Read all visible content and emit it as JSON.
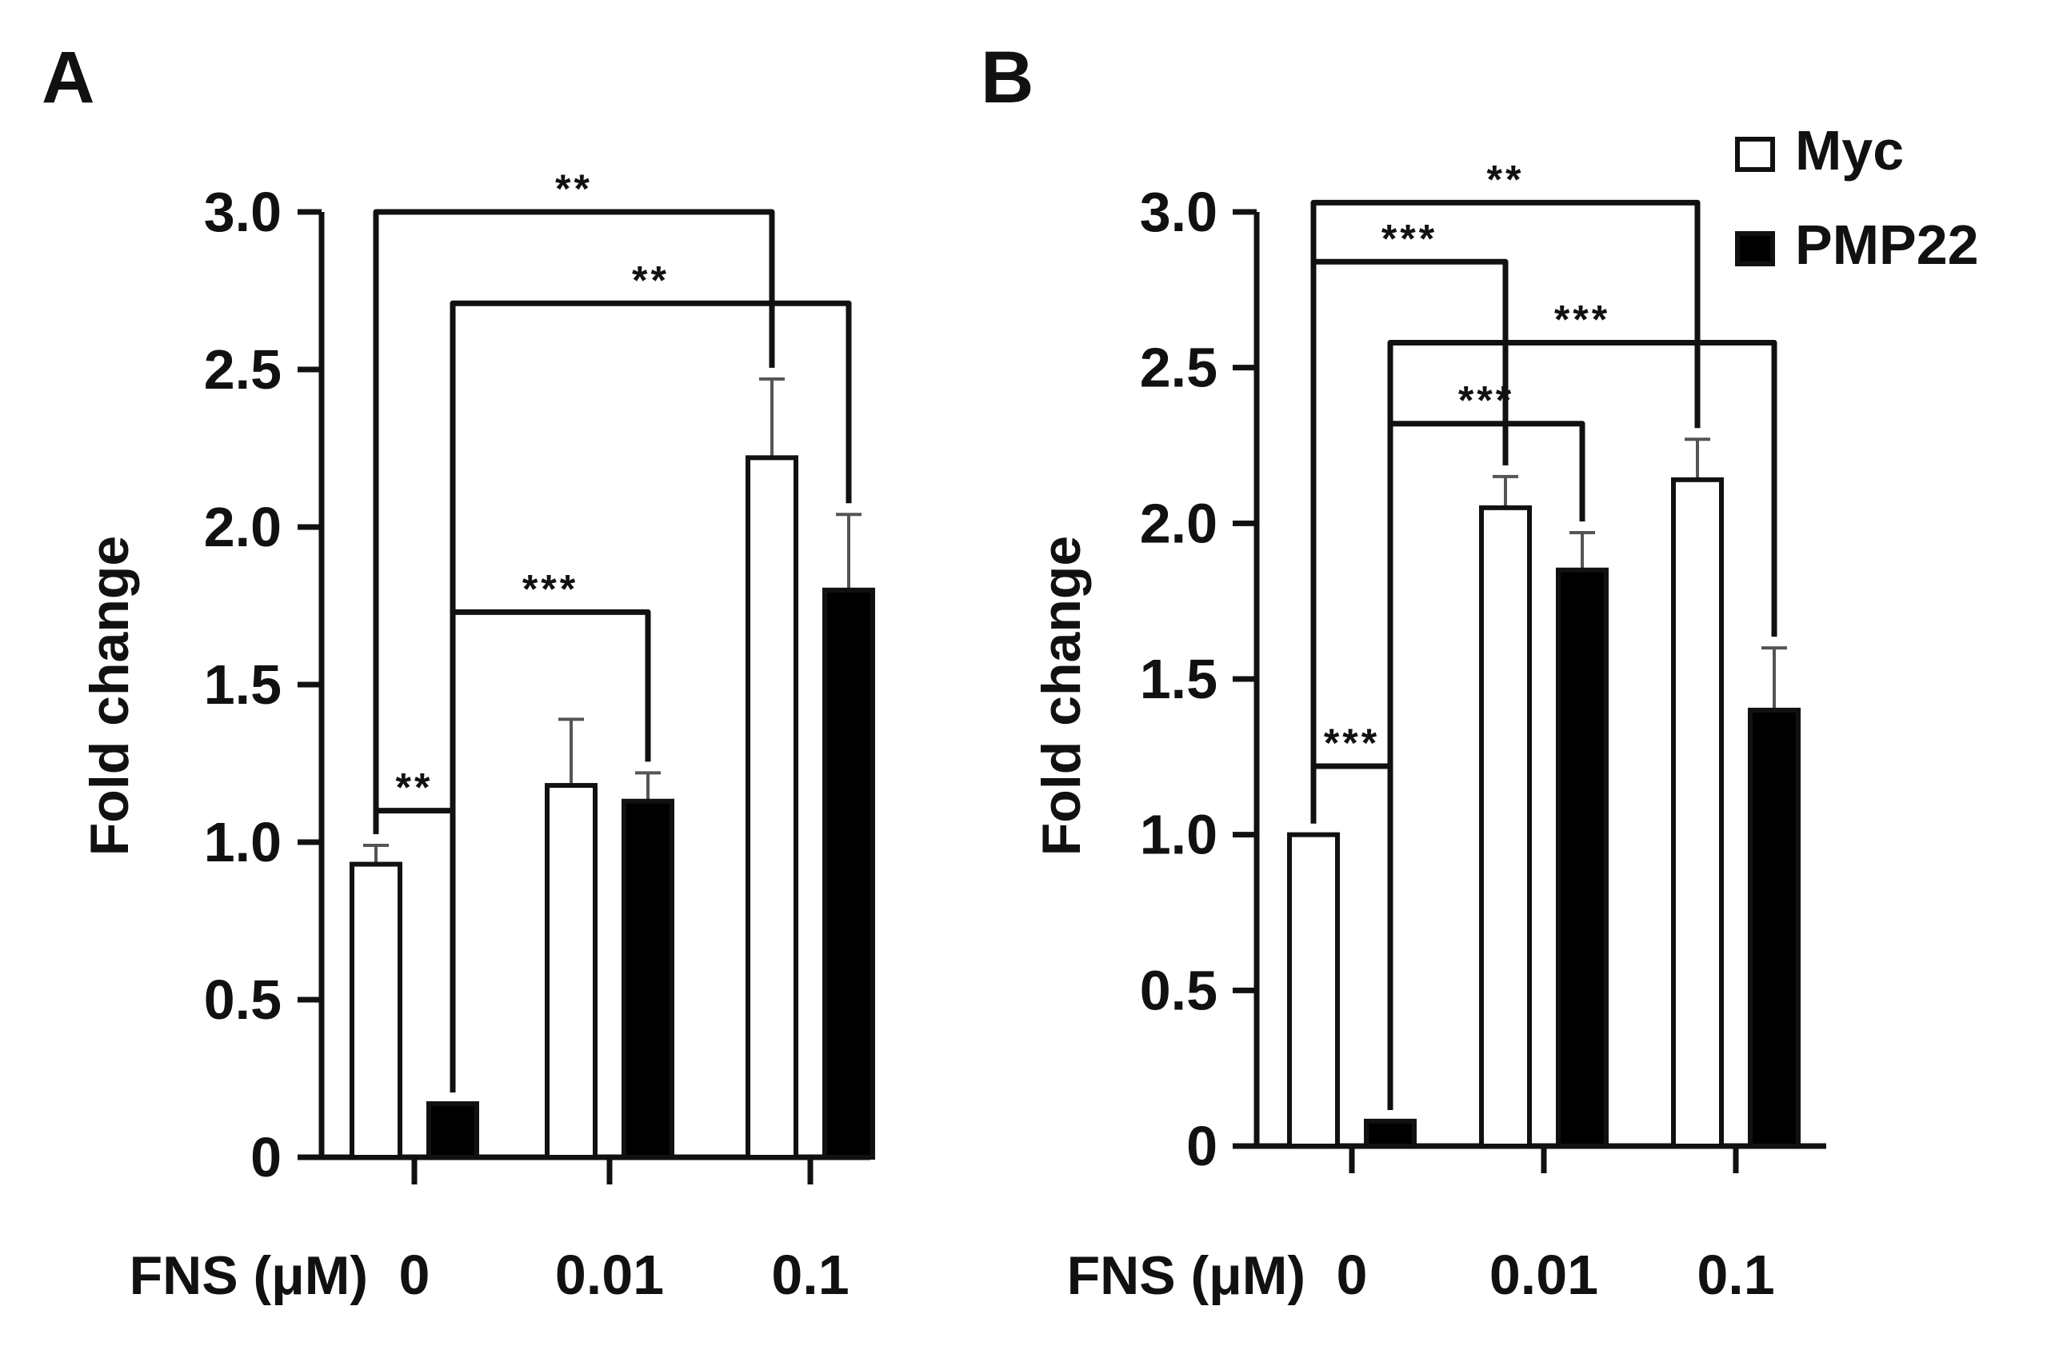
{
  "figure": {
    "series_names": [
      "Myc",
      "PMP22"
    ],
    "series_fill": [
      "#ffffff",
      "#000000"
    ],
    "line_color": "#111111",
    "error_color": "#555555"
  },
  "chart_data": [
    {
      "panel": "A",
      "type": "bar",
      "title": "",
      "xlabel": "FNS (μM)",
      "ylabel": "Fold change",
      "categories": [
        "0",
        "0.01",
        "0.1"
      ],
      "ylim": [
        0,
        3.0
      ],
      "yticks": [
        0,
        0.5,
        1.0,
        1.5,
        2.0,
        2.5,
        3.0
      ],
      "ytick_labels": [
        "0",
        "0.5",
        "1.0",
        "1.5",
        "2.0",
        "2.5",
        "3.0"
      ],
      "series": [
        {
          "name": "Myc",
          "values": [
            0.93,
            1.18,
            2.22
          ],
          "errors": [
            0.06,
            0.21,
            0.25
          ]
        },
        {
          "name": "PMP22",
          "values": [
            0.17,
            1.13,
            1.8
          ],
          "errors": [
            0.0,
            0.09,
            0.24
          ]
        }
      ],
      "significance": [
        {
          "from": [
            0,
            0
          ],
          "to": [
            0,
            1
          ],
          "level": 1.1,
          "label": "**"
        },
        {
          "from": [
            0,
            1
          ],
          "to": [
            1,
            1
          ],
          "level": 1.73,
          "label": "***"
        },
        {
          "from": [
            0,
            0
          ],
          "to": [
            2,
            0
          ],
          "level": 3.0,
          "label": "**"
        },
        {
          "from": [
            0,
            1
          ],
          "to": [
            2,
            1
          ],
          "level": 2.71,
          "label": "**"
        }
      ],
      "legend": null
    },
    {
      "panel": "B",
      "type": "bar",
      "title": "",
      "xlabel": "FNS (μM)",
      "ylabel": "Fold change",
      "categories": [
        "0",
        "0.01",
        "0.1"
      ],
      "ylim": [
        0,
        3.0
      ],
      "yticks": [
        0,
        0.5,
        1.0,
        1.5,
        2.0,
        2.5,
        3.0
      ],
      "ytick_labels": [
        "0",
        "0.5",
        "1.0",
        "1.5",
        "2.0",
        "2.5",
        "3.0"
      ],
      "series": [
        {
          "name": "Myc",
          "values": [
            1.0,
            2.05,
            2.14
          ],
          "errors": [
            0.0,
            0.1,
            0.13
          ]
        },
        {
          "name": "PMP22",
          "values": [
            0.08,
            1.85,
            1.4
          ],
          "errors": [
            0.0,
            0.12,
            0.2
          ]
        }
      ],
      "significance": [
        {
          "from": [
            0,
            0
          ],
          "to": [
            0,
            1
          ],
          "level": 1.22,
          "label": "***"
        },
        {
          "from": [
            0,
            1
          ],
          "to": [
            1,
            1
          ],
          "level": 2.32,
          "label": "***"
        },
        {
          "from": [
            0,
            1
          ],
          "to": [
            2,
            1
          ],
          "level": 2.58,
          "label": "***"
        },
        {
          "from": [
            0,
            0
          ],
          "to": [
            1,
            0
          ],
          "level": 2.84,
          "label": "***"
        },
        {
          "from": [
            0,
            0
          ],
          "to": [
            2,
            0
          ],
          "level": 3.03,
          "label": "**"
        }
      ],
      "legend": {
        "position": "top-right",
        "entries": [
          "Myc",
          "PMP22"
        ]
      }
    }
  ]
}
